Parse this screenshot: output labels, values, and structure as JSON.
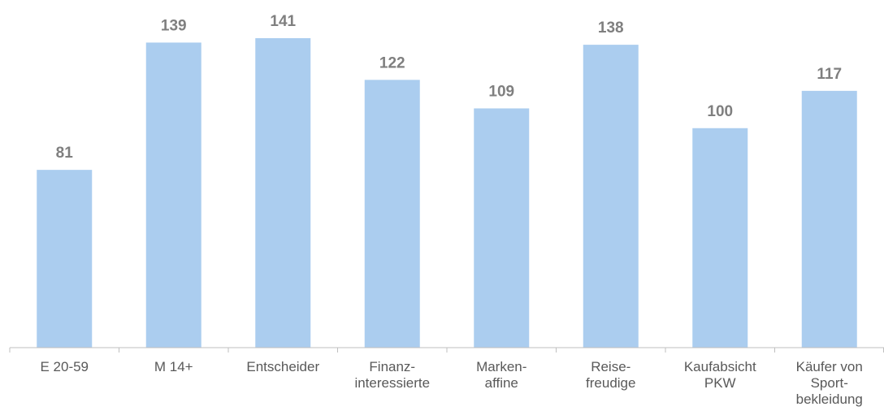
{
  "chart_data": {
    "type": "bar",
    "categories": [
      [
        "E 20-59"
      ],
      [
        "M 14+"
      ],
      [
        "Entscheider"
      ],
      [
        "Finanz-",
        "interessierte"
      ],
      [
        "Marken-",
        "affine"
      ],
      [
        "Reise-",
        "freudige"
      ],
      [
        "Kaufabsicht",
        "PKW"
      ],
      [
        "Käufer von",
        "Sport-",
        "bekleidung"
      ]
    ],
    "values": [
      81,
      139,
      141,
      122,
      109,
      138,
      100,
      117
    ],
    "data_labels": [
      "81",
      "139",
      "141",
      "122",
      "109",
      "138",
      "100",
      "117"
    ],
    "bar_color": "#abcdef",
    "axis_color": "#bfbfbf",
    "value_label_color": "#7f7f7f",
    "tick_label_color": "#595959",
    "ylim": [
      0,
      141
    ],
    "grid": false,
    "legend": "none",
    "title": "",
    "xlabel": "",
    "ylabel": ""
  }
}
